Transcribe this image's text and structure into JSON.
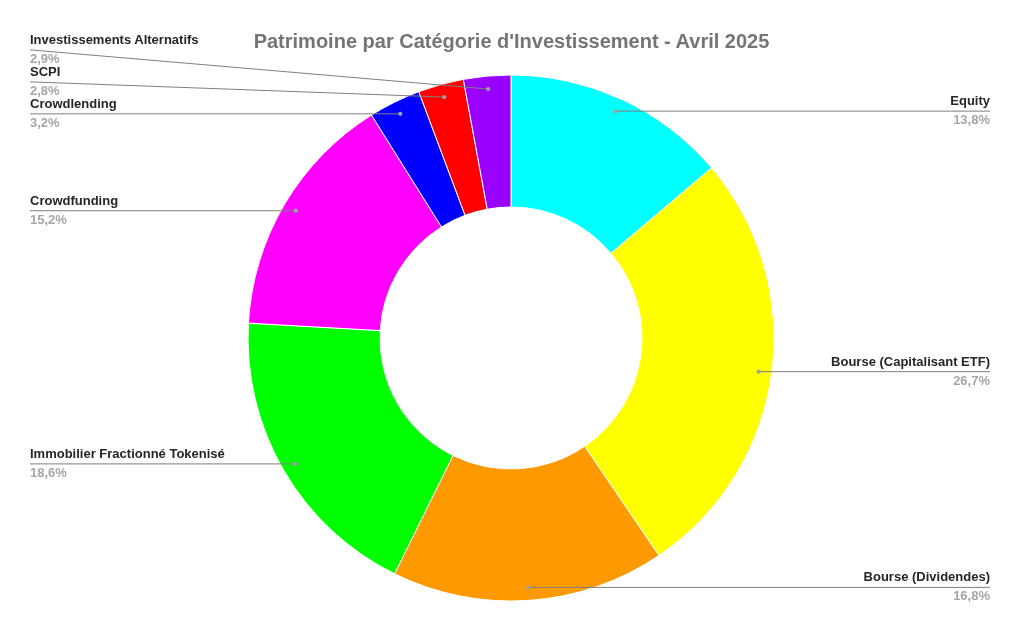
{
  "chart_data": {
    "type": "donut",
    "title": "Patrimoine par Catégorie d'Investissement - Avril 2025",
    "categories": [
      "Equity",
      "Bourse (Capitalisant ETF)",
      "Bourse (Dividendes)",
      "Immobilier Fractionné Tokenisé",
      "Crowdfunding",
      "Crowdlending",
      "SCPI",
      "Investissements Alternatifs"
    ],
    "values": [
      13.8,
      26.7,
      16.8,
      18.6,
      15.2,
      3.2,
      2.8,
      2.9
    ],
    "value_labels": [
      "13,8%",
      "26,7%",
      "16,8%",
      "18,6%",
      "15,2%",
      "3,2%",
      "2,8%",
      "2,9%"
    ],
    "colors": [
      "#00ffff",
      "#ffff00",
      "#ff9900",
      "#00ff00",
      "#ff00ff",
      "#0000ff",
      "#ff0000",
      "#9900ff"
    ]
  }
}
